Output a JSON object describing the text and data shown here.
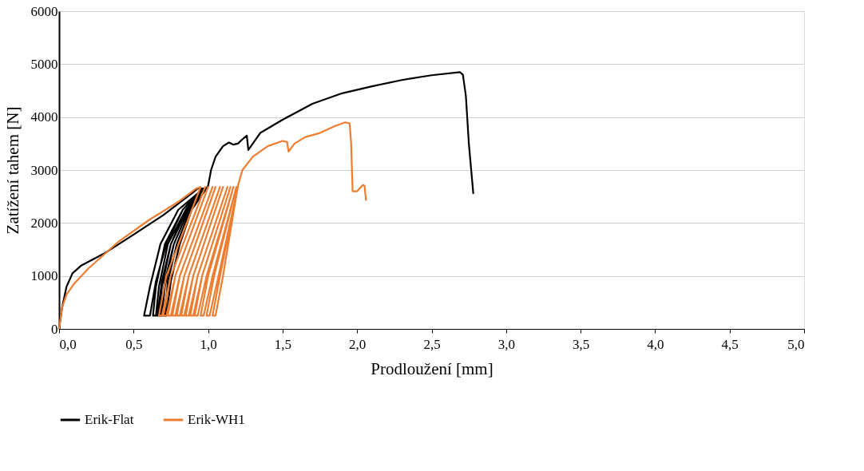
{
  "chart_data": {
    "type": "line",
    "xlabel": "Prodloužení [mm]",
    "ylabel": "Zatížení tahem [N]",
    "xlim": [
      0,
      5
    ],
    "ylim": [
      0,
      6000
    ],
    "xticks": [
      {
        "value": 0,
        "label": "0,0"
      },
      {
        "value": 0.5,
        "label": "0,5"
      },
      {
        "value": 1,
        "label": "1,0"
      },
      {
        "value": 1.5,
        "label": "1,5"
      },
      {
        "value": 2,
        "label": "2,0"
      },
      {
        "value": 2.5,
        "label": "2,5"
      },
      {
        "value": 3,
        "label": "3,0"
      },
      {
        "value": 3.5,
        "label": "3,5"
      },
      {
        "value": 4,
        "label": "4,0"
      },
      {
        "value": 4.5,
        "label": "4,5"
      },
      {
        "value": 5,
        "label": "5,0"
      }
    ],
    "yticks": [
      0,
      1000,
      2000,
      3000,
      4000,
      5000,
      6000
    ],
    "grid": "y",
    "legend": "bottom",
    "line_style": "solid",
    "marker": "none",
    "series": [
      {
        "name": "Erik-Flat",
        "color": "#000000",
        "x": [
          0,
          0.02,
          0.05,
          0.09,
          0.15,
          0.3,
          0.5,
          0.7,
          0.9,
          0.93,
          0.97,
          0.8,
          0.68,
          0.61,
          0.57,
          0.61,
          0.65,
          0.72,
          0.83,
          0.96,
          0.83,
          0.71,
          0.65,
          0.63,
          0.66,
          0.69,
          0.75,
          0.85,
          0.96,
          0.85,
          0.73,
          0.67,
          0.65,
          0.68,
          0.71,
          0.77,
          0.87,
          0.97,
          0.86,
          0.75,
          0.69,
          0.67,
          0.71,
          0.73,
          0.79,
          0.88,
          0.97,
          0.87,
          0.77,
          0.71,
          0.69,
          0.72,
          0.75,
          0.81,
          0.89,
          1.0,
          1.02,
          1.05,
          1.1,
          1.14,
          1.17,
          1.2,
          1.23,
          1.26,
          1.27,
          1.3,
          1.35,
          1.5,
          1.7,
          1.9,
          2.1,
          2.3,
          2.5,
          2.69,
          2.71,
          2.73,
          2.75,
          2.78
        ],
        "values": [
          0,
          400,
          800,
          1050,
          1200,
          1420,
          1780,
          2150,
          2580,
          2650,
          2650,
          2250,
          1600,
          800,
          250,
          250,
          900,
          1600,
          2250,
          2650,
          2250,
          1600,
          800,
          250,
          250,
          900,
          1600,
          2250,
          2650,
          2250,
          1600,
          800,
          250,
          250,
          900,
          1600,
          2250,
          2650,
          2250,
          1600,
          800,
          250,
          250,
          900,
          1600,
          2250,
          2650,
          2250,
          1600,
          800,
          250,
          250,
          900,
          1600,
          2250,
          2700,
          3000,
          3250,
          3450,
          3520,
          3480,
          3500,
          3580,
          3650,
          3380,
          3500,
          3700,
          3950,
          4250,
          4450,
          4580,
          4700,
          4790,
          4850,
          4800,
          4400,
          3500,
          2550
        ]
      },
      {
        "name": "Erik-WH1",
        "color": "#ed7d31",
        "x": [
          0,
          0.02,
          0.05,
          0.1,
          0.2,
          0.4,
          0.6,
          0.8,
          0.92,
          0.95,
          0.72,
          0.67,
          0.69,
          0.75,
          0.98,
          0.75,
          0.7,
          0.72,
          0.78,
          1.0,
          0.78,
          0.73,
          0.75,
          0.81,
          1.03,
          0.81,
          0.76,
          0.78,
          0.84,
          1.05,
          0.84,
          0.79,
          0.81,
          0.87,
          1.08,
          0.87,
          0.82,
          0.84,
          0.9,
          1.1,
          0.9,
          0.85,
          0.87,
          0.93,
          1.13,
          0.93,
          0.88,
          0.9,
          0.96,
          1.15,
          0.96,
          0.91,
          0.93,
          0.99,
          1.17,
          1.0,
          0.95,
          0.97,
          1.03,
          1.19,
          1.04,
          0.99,
          1.01,
          1.07,
          1.2,
          1.08,
          1.03,
          1.05,
          1.1,
          1.2,
          1.21,
          1.23,
          1.3,
          1.4,
          1.5,
          1.53,
          1.54,
          1.58,
          1.65,
          1.75,
          1.85,
          1.92,
          1.95,
          1.96,
          1.97,
          2.0,
          2.04,
          2.05,
          2.06
        ],
        "values": [
          0,
          400,
          650,
          850,
          1150,
          1650,
          2050,
          2400,
          2650,
          2680,
          1000,
          250,
          250,
          1000,
          2680,
          1000,
          250,
          250,
          1000,
          2680,
          1000,
          250,
          250,
          1000,
          2680,
          1000,
          250,
          250,
          1000,
          2680,
          1000,
          250,
          250,
          1000,
          2680,
          1000,
          250,
          250,
          1000,
          2680,
          1000,
          250,
          250,
          1000,
          2680,
          1000,
          250,
          250,
          1000,
          2680,
          1000,
          250,
          250,
          1000,
          2680,
          1000,
          250,
          250,
          1000,
          2680,
          1000,
          250,
          250,
          1000,
          2680,
          1000,
          250,
          250,
          1000,
          2700,
          2800,
          3000,
          3250,
          3450,
          3550,
          3530,
          3350,
          3500,
          3620,
          3700,
          3830,
          3900,
          3880,
          3500,
          2600,
          2600,
          2720,
          2700,
          2420
        ]
      }
    ]
  }
}
